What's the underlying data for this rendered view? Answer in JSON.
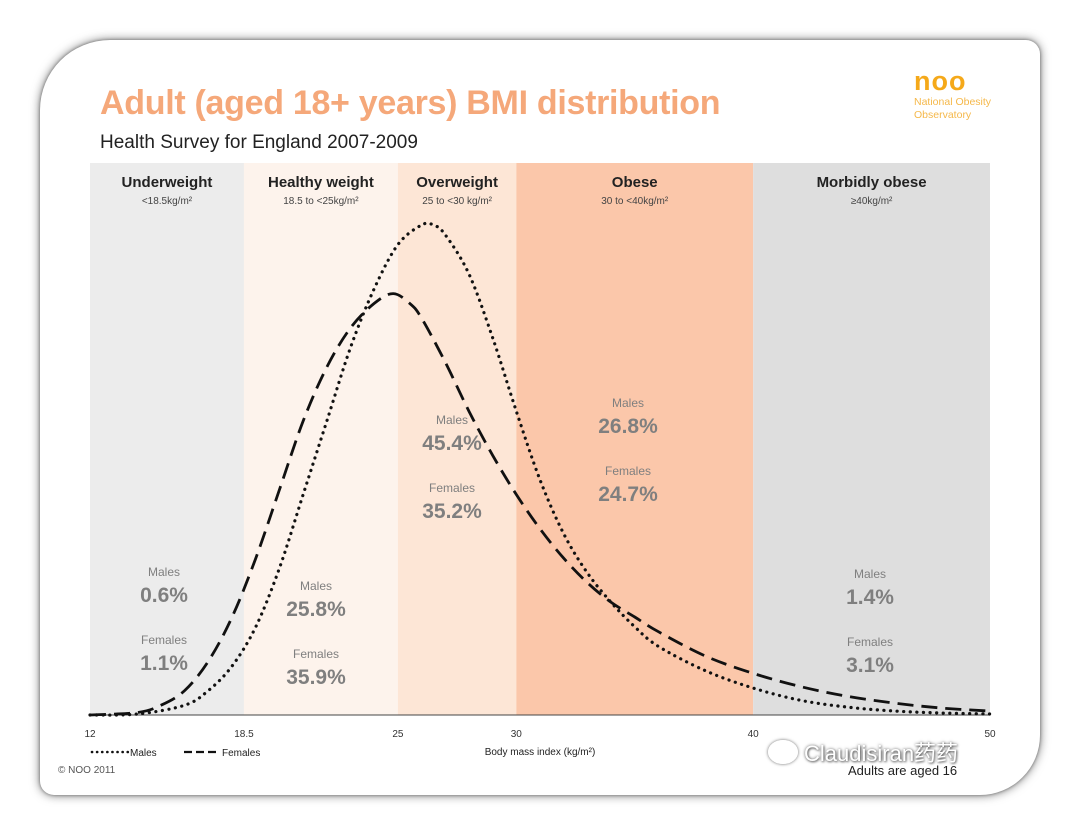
{
  "logo": {
    "word": "noo",
    "sub": "National Obesity Observatory"
  },
  "header": {
    "title": "Adult (aged 18+ years) BMI distribution",
    "subtitle": "Health Survey for England 2007-2009"
  },
  "colors": {
    "underweight": "#ececec",
    "healthy": "#fdf3ec",
    "overweight": "#fde6d6",
    "obese": "#fbc7aa",
    "morbid": "#dedede",
    "stat_text": "#7f7f7f",
    "title": "#f5a87a"
  },
  "chart_data": {
    "type": "line",
    "xlabel": "Body mass index (kg/m²)",
    "xlim": [
      12,
      50
    ],
    "x_ticks": [
      "12",
      "18.5",
      "25",
      "30",
      "40",
      "50"
    ],
    "categories": [
      {
        "name": "Underweight",
        "range": "<18.5kg/m²",
        "from": 12,
        "to": 18.5,
        "males_label": "Males",
        "males": "0.6%",
        "females_label": "Females",
        "females": "1.1%"
      },
      {
        "name": "Healthy weight",
        "range": "18.5 to <25kg/m²",
        "from": 18.5,
        "to": 25,
        "males_label": "Males",
        "males": "25.8%",
        "females_label": "Females",
        "females": "35.9%"
      },
      {
        "name": "Overweight",
        "range": "25 to <30 kg/m²",
        "from": 25,
        "to": 30,
        "males_label": "Males",
        "males": "45.4%",
        "females_label": "Females",
        "females": "35.2%"
      },
      {
        "name": "Obese",
        "range": "30 to <40kg/m²",
        "from": 30,
        "to": 40,
        "males_label": "Males",
        "males": "26.8%",
        "females_label": "Females",
        "females": "24.7%"
      },
      {
        "name": "Morbidly obese",
        "range": "≥40kg/m²",
        "from": 40,
        "to": 50,
        "males_label": "Males",
        "males": "1.4%",
        "females_label": "Females",
        "females": "3.1%"
      }
    ],
    "series": [
      {
        "name": "Males",
        "style": "dotted",
        "x": [
          12,
          14,
          16,
          17,
          18,
          19,
          20,
          21,
          22,
          23,
          24,
          25,
          26,
          26.5,
          27,
          28,
          29,
          30,
          31,
          32,
          33,
          34,
          35,
          36,
          38,
          40,
          42,
          44,
          46,
          48,
          50
        ],
        "y": [
          0.0,
          0.002,
          0.02,
          0.05,
          0.1,
          0.18,
          0.3,
          0.45,
          0.6,
          0.75,
          0.87,
          0.96,
          1.0,
          1.0,
          0.98,
          0.9,
          0.77,
          0.62,
          0.48,
          0.37,
          0.29,
          0.23,
          0.18,
          0.14,
          0.09,
          0.055,
          0.03,
          0.016,
          0.008,
          0.004,
          0.002
        ]
      },
      {
        "name": "Females",
        "style": "dashed",
        "x": [
          12,
          14,
          15,
          16,
          17,
          18,
          19,
          20,
          21,
          22,
          23,
          24,
          24.8,
          25.5,
          26,
          27,
          28,
          29,
          30,
          31,
          32,
          33,
          34,
          35,
          36,
          38,
          40,
          42,
          44,
          46,
          48,
          50
        ],
        "y": [
          0.0,
          0.005,
          0.02,
          0.05,
          0.11,
          0.2,
          0.32,
          0.46,
          0.6,
          0.71,
          0.79,
          0.84,
          0.86,
          0.84,
          0.81,
          0.72,
          0.62,
          0.53,
          0.45,
          0.38,
          0.32,
          0.27,
          0.23,
          0.2,
          0.17,
          0.12,
          0.085,
          0.058,
          0.038,
          0.024,
          0.014,
          0.008
        ]
      }
    ],
    "legend": [
      {
        "label": "Males",
        "style": "dotted"
      },
      {
        "label": "Females",
        "style": "dashed"
      }
    ]
  },
  "footer": {
    "copyright": "© NOO 2011",
    "note": "Adults are aged 16",
    "watermark": "Claudisiran药药"
  }
}
